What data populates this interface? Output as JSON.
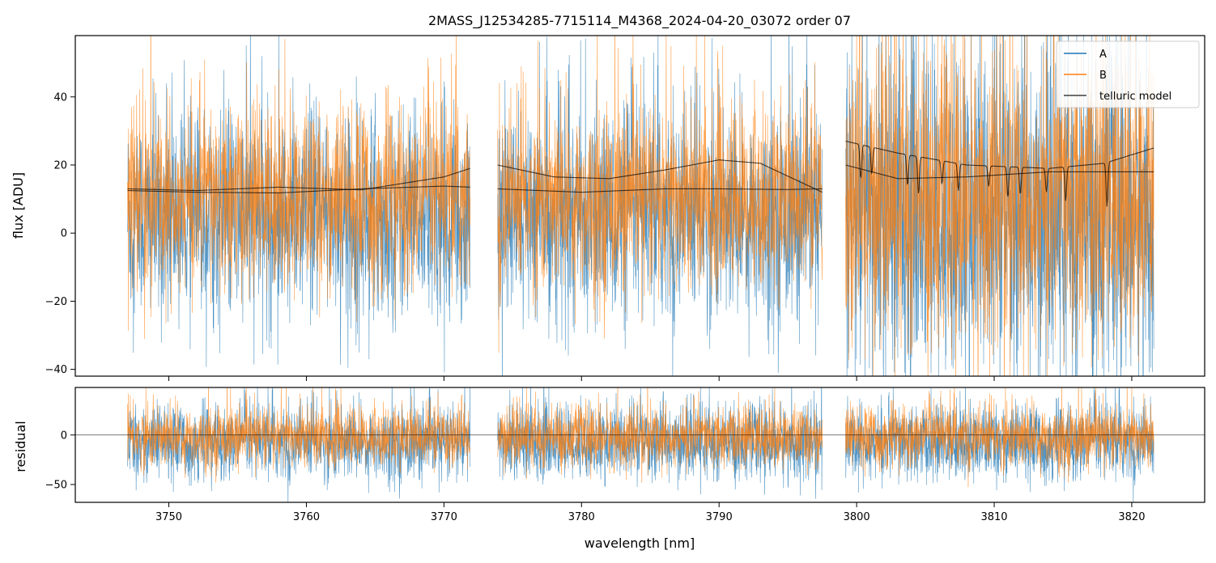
{
  "chart_data": [
    {
      "panel": "main",
      "type": "line",
      "title": "2MASS_J12534285-7715114_M4368_2024-04-20_03072  order 07",
      "xlabel": "",
      "ylabel": "flux [ADU]",
      "xlim": [
        3743.2,
        3825.3
      ],
      "ylim": [
        -42,
        58
      ],
      "yticks": [
        -40,
        -20,
        0,
        20,
        40
      ],
      "xticks": [
        3750,
        3760,
        3770,
        3780,
        3790,
        3800,
        3810,
        3820
      ],
      "grid": false,
      "legend_position": "top-right",
      "legend": [
        "A",
        "B",
        "telluric model"
      ],
      "segments": [
        {
          "x_start": 3747.0,
          "x_end": 3771.9
        },
        {
          "x_start": 3773.9,
          "x_end": 3797.5
        },
        {
          "x_start": 3799.2,
          "x_end": 3821.6
        }
      ],
      "series": [
        {
          "name": "A",
          "color": "#1f77b4",
          "approx_mean": 5,
          "approx_spread": 18
        },
        {
          "name": "B",
          "color": "#ff7f0e",
          "approx_mean": 10,
          "approx_spread": 16
        },
        {
          "name": "telluric model",
          "color": "#000000",
          "upper_curve": {
            "x": [
              3747,
              3752,
              3758,
              3764,
              3770,
              3771.9,
              3773.9,
              3778,
              3782,
              3786,
              3790,
              3793,
              3797.5,
              3799.2,
              3803,
              3808,
              3814,
              3818,
              3821.6
            ],
            "y": [
              13,
              12.5,
              13.5,
              12.7,
              16.5,
              19,
              20,
              16.5,
              16,
              18.5,
              21.5,
              20.5,
              12,
              27,
              23.5,
              20,
              19,
              20.5,
              25
            ]
          },
          "lower_curve": {
            "x": [
              3747,
              3752,
              3758,
              3764,
              3770,
              3771.9,
              3773.9,
              3780,
              3786,
              3790,
              3795,
              3797.5,
              3799.2,
              3803,
              3808,
              3814,
              3818,
              3821.6
            ],
            "y": [
              12.5,
              12,
              11.8,
              13,
              13.8,
              13.5,
              13,
              12,
              13,
              13,
              12.8,
              13,
              20,
              16,
              16.5,
              18,
              18,
              18
            ]
          },
          "absorption_lines": [
            {
              "x": 3800.3,
              "depth": 10
            },
            {
              "x": 3801.1,
              "depth": 8
            },
            {
              "x": 3803.7,
              "depth": 9
            },
            {
              "x": 3804.5,
              "depth": 11
            },
            {
              "x": 3806.2,
              "depth": 7
            },
            {
              "x": 3807.4,
              "depth": 8
            },
            {
              "x": 3809.6,
              "depth": 6
            },
            {
              "x": 3811.0,
              "depth": 9
            },
            {
              "x": 3811.9,
              "depth": 8
            },
            {
              "x": 3813.8,
              "depth": 7
            },
            {
              "x": 3815.2,
              "depth": 10
            },
            {
              "x": 3818.2,
              "depth": 13
            }
          ]
        }
      ]
    },
    {
      "panel": "residual",
      "type": "line",
      "xlabel": "wavelength [nm]",
      "ylabel": "residual",
      "xlim": [
        3743.2,
        3825.3
      ],
      "ylim": [
        -68,
        48
      ],
      "yticks": [
        -50,
        0
      ],
      "xticks": [
        3750,
        3760,
        3770,
        3780,
        3790,
        3800,
        3810,
        3820
      ],
      "zero_line": 0,
      "grid": false,
      "series": [
        {
          "name": "A",
          "color": "#1f77b4",
          "approx_mean": -8,
          "approx_spread": 22
        },
        {
          "name": "B",
          "color": "#ff7f0e",
          "approx_mean": -2,
          "approx_spread": 18
        }
      ]
    }
  ]
}
